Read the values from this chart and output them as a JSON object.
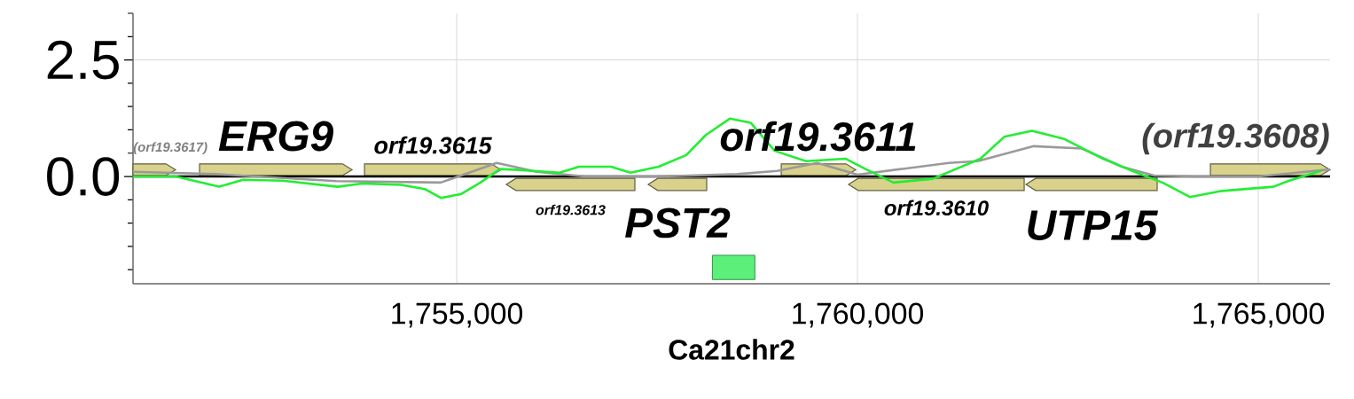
{
  "chart_data": {
    "type": "line",
    "xlabel": "Ca21chr2",
    "xlim": [
      1750962,
      1765896
    ],
    "ylim": [
      -2.3,
      3.5
    ],
    "xticks": [
      {
        "value": 1755000,
        "label": "1,755,000"
      },
      {
        "value": 1760000,
        "label": "1,760,000"
      },
      {
        "value": 1765000,
        "label": "1,765,000"
      }
    ],
    "yticks": [
      {
        "value": -2.0,
        "label": null
      },
      {
        "value": -1.5,
        "label": null
      },
      {
        "value": -1.0,
        "label": null
      },
      {
        "value": -0.5,
        "label": null
      },
      {
        "value": 0,
        "label": "0.0"
      },
      {
        "value": 0.5,
        "label": null
      },
      {
        "value": 1.0,
        "label": null
      },
      {
        "value": 1.5,
        "label": null
      },
      {
        "value": 2.0,
        "label": null
      },
      {
        "value": 2.5,
        "label": "2.5"
      },
      {
        "value": 3.0,
        "label": null
      },
      {
        "value": 3.5,
        "label": null
      }
    ],
    "grid": true,
    "series": [
      {
        "color": "#000000",
        "x": [
          1750962,
          1765896
        ],
        "values": [
          0,
          0
        ]
      },
      {
        "color": "#9a9a9a",
        "x": [
          1750962,
          1752000,
          1753500,
          1754800,
          1755500,
          1756000,
          1756600,
          1757500,
          1758500,
          1759000,
          1759500,
          1760000,
          1761140,
          1761500,
          1762200,
          1762800,
          1763300,
          1763700,
          1764200,
          1765000,
          1765896
        ],
        "values": [
          0.1,
          0.05,
          -0.1,
          -0.13,
          0.29,
          0.1,
          0.0,
          0.0,
          0.05,
          0.12,
          0.29,
          0.04,
          0.29,
          0.33,
          0.65,
          0.6,
          0.21,
          0.02,
          0.0,
          0.0,
          0.15
        ]
      },
      {
        "color": "#22ee33",
        "x": [
          1750962,
          1751493,
          1752035,
          1752334,
          1752827,
          1753518,
          1753816,
          1754309,
          1754602,
          1754801,
          1755050,
          1755296,
          1755542,
          1755785,
          1756283,
          1756527,
          1756925,
          1757168,
          1757519,
          1757865,
          1758108,
          1758407,
          1758670,
          1758967,
          1759358,
          1759856,
          1760100,
          1760448,
          1760940,
          1761534,
          1761831,
          1762177,
          1762572,
          1763064,
          1763560,
          1763805,
          1764148,
          1764546,
          1765188,
          1765387,
          1765781
        ],
        "values": [
          0.0,
          0.0,
          -0.22,
          -0.07,
          -0.09,
          -0.22,
          -0.15,
          -0.18,
          -0.27,
          -0.46,
          -0.38,
          -0.13,
          0.16,
          0.14,
          0.08,
          0.21,
          0.21,
          0.08,
          0.21,
          0.46,
          0.89,
          1.24,
          1.15,
          0.55,
          0.33,
          0.38,
          0.16,
          -0.13,
          -0.05,
          0.38,
          0.85,
          0.98,
          0.81,
          0.38,
          0.03,
          -0.13,
          -0.44,
          -0.31,
          -0.22,
          -0.09,
          0.12
        ]
      },
      {
        "type": "bar",
        "color": "#5cf07a",
        "x": [
          1758455
        ],
        "base": [
          -2.21
        ],
        "values": [
          0.52
        ]
      }
    ],
    "bands": [
      {
        "axis": "x",
        "from": 1750962,
        "to": 1751493,
        "color": "#d8d28c",
        "label": "(orf19.3617)"
      },
      {
        "axis": "x",
        "from": 1751792,
        "to": 1753695,
        "color": "#d8d28c",
        "label": "ERG9"
      },
      {
        "axis": "x",
        "from": 1753850,
        "to": 1755553,
        "color": "#d8d28c",
        "label": "orf19.3615"
      },
      {
        "axis": "x",
        "from": 1757223,
        "to": 1755619,
        "color": "#d8d28c",
        "label": "orf19.3613"
      },
      {
        "axis": "x",
        "from": 1758119,
        "to": 1757389,
        "color": "#d8d28c",
        "label": "PST2"
      },
      {
        "axis": "x",
        "from": 1759049,
        "to": 1759978,
        "color": "#d8d28c",
        "label": "orf19.3611"
      },
      {
        "axis": "x",
        "from": 1762080,
        "to": 1759889,
        "color": "#d8d28c",
        "label": "orf19.3610"
      },
      {
        "axis": "x",
        "from": 1763739,
        "to": 1762102,
        "color": "#d8d28c",
        "label": "UTP15"
      },
      {
        "axis": "x",
        "from": 1764403,
        "to": 1765896,
        "color": "#d8d28c",
        "label": "(orf19.3608)"
      }
    ]
  }
}
